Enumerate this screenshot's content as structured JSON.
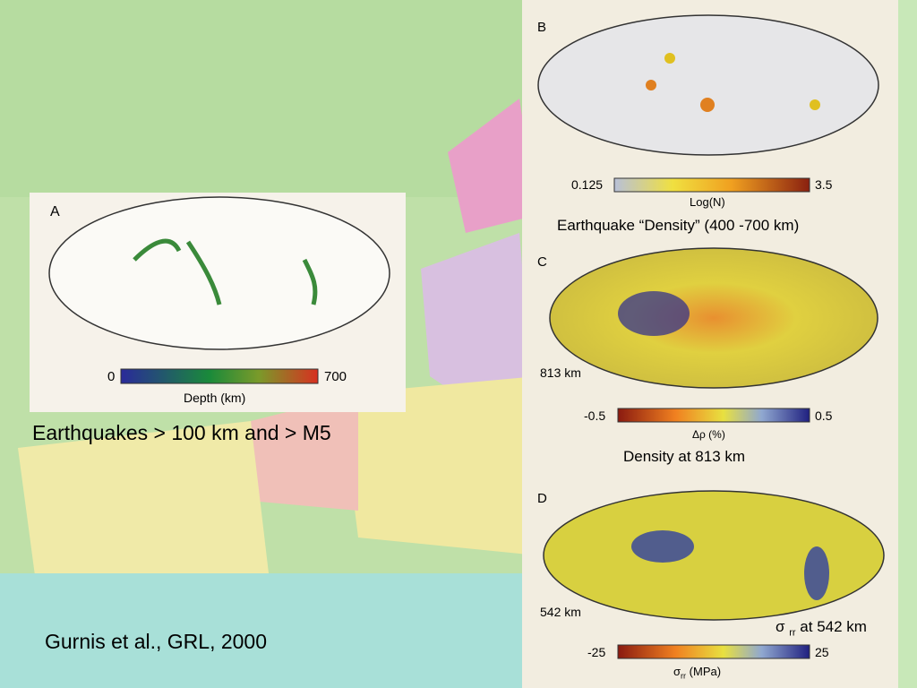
{
  "slide": {
    "caption_left": "Earthquakes > 100 km and > M5",
    "citation": "Gurnis et al., GRL, 2000"
  },
  "panels": [
    {
      "label": "A",
      "scale_min": "0",
      "scale_max": "700",
      "scale_title": "Depth (km)"
    },
    {
      "label": "B",
      "scale_min": "0.125",
      "scale_max": "3.5",
      "scale_title": "Log(N)",
      "caption": "Earthquake “Density” (400 -700 km)"
    },
    {
      "label": "C",
      "depth": "813 km",
      "scale_min": "-0.5",
      "scale_max": "0.5",
      "scale_title": "Δρ (%)",
      "caption": "Density at 813 km"
    },
    {
      "label": "D",
      "depth": "542 km",
      "scale_min": "-25",
      "scale_max": "25",
      "scale_title_symbol": "σ",
      "scale_title_sub": "rr",
      "scale_title_unit": "(MPa)",
      "caption_symbol": "σ",
      "caption_sub": "rr",
      "caption_rest": "at 542 km"
    }
  ]
}
